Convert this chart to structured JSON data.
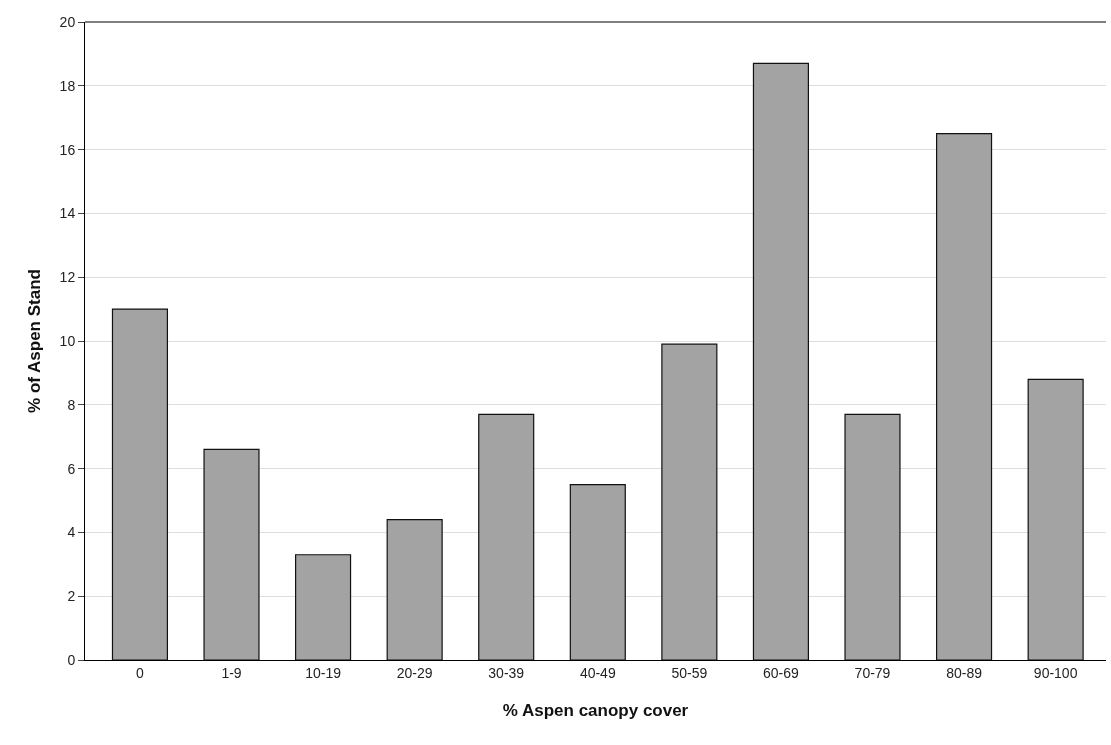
{
  "chart_data": {
    "type": "bar",
    "xlabel": "% Aspen canopy cover",
    "ylabel": "% of Aspen Stand",
    "categories": [
      "0",
      "1-9",
      "10-19",
      "20-29",
      "30-39",
      "40-49",
      "50-59",
      "60-69",
      "70-79",
      "80-89",
      "90-100"
    ],
    "values": [
      11.0,
      6.6,
      3.3,
      4.4,
      7.7,
      5.5,
      9.9,
      18.7,
      7.7,
      16.5,
      8.8
    ],
    "color": "#a3a3a3",
    "ylim": [
      0,
      20
    ],
    "yticks": [
      0,
      2,
      4,
      6,
      8,
      10,
      12,
      14,
      16,
      18,
      20
    ],
    "grid": "y"
  }
}
